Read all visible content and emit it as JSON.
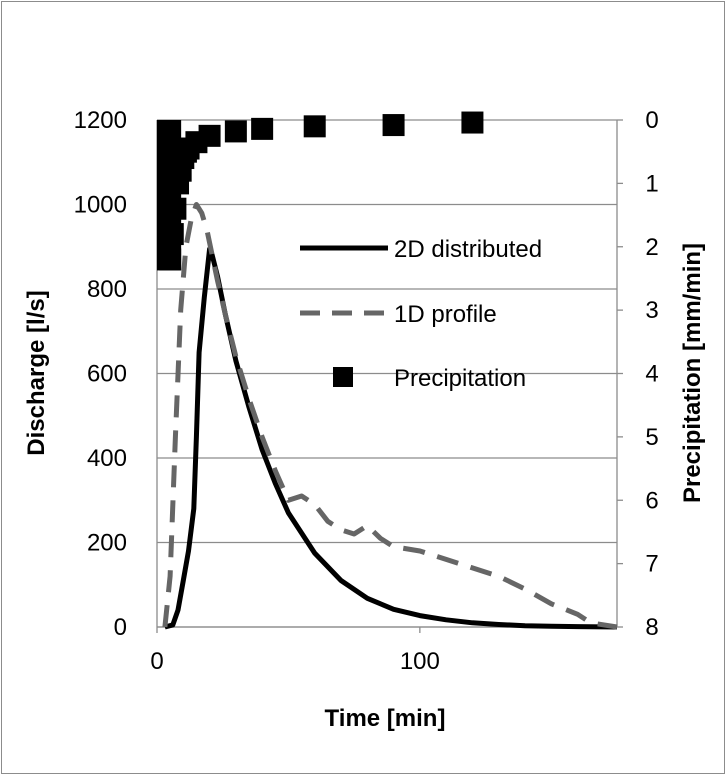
{
  "chart_data": {
    "type": "line",
    "title": "",
    "xlabel": "Time [min]",
    "ylabel": "Discharge [l/s]",
    "y2label": "Precipitation [mm/min]",
    "xlim": [
      0,
      175
    ],
    "ylim": [
      0,
      1200
    ],
    "y2lim": [
      8,
      0
    ],
    "x_ticks": [
      "0",
      "100"
    ],
    "y_ticks": [
      "0",
      "200",
      "400",
      "600",
      "800",
      "1000",
      "1200"
    ],
    "y2_ticks": [
      "0",
      "1",
      "2",
      "3",
      "4",
      "5",
      "6",
      "7",
      "8"
    ],
    "grid": "horizontal",
    "legend_position": "upper-right inside",
    "series": [
      {
        "name": "2D distributed",
        "axis": "left",
        "style": "solid",
        "color": "#000000",
        "x": [
          3,
          6,
          8,
          10,
          12,
          14,
          15,
          16,
          18,
          20,
          21,
          23,
          26,
          30,
          35,
          40,
          45,
          50,
          60,
          70,
          80,
          90,
          100,
          110,
          120,
          130,
          140,
          150,
          160,
          175
        ],
        "y": [
          0,
          5,
          40,
          110,
          180,
          280,
          450,
          650,
          780,
          895,
          880,
          830,
          740,
          630,
          520,
          420,
          340,
          270,
          175,
          110,
          68,
          42,
          27,
          17,
          10,
          6,
          3,
          2,
          1,
          0
        ]
      },
      {
        "name": "1D profile",
        "axis": "left",
        "style": "dashed",
        "color": "#666666",
        "x": [
          3,
          5,
          7,
          9,
          11,
          13,
          15,
          17,
          19,
          21,
          23,
          26,
          30,
          35,
          40,
          45,
          50,
          55,
          60,
          65,
          70,
          75,
          80,
          85,
          90,
          100,
          110,
          120,
          130,
          140,
          150,
          160,
          165,
          175
        ],
        "y": [
          0,
          120,
          450,
          750,
          900,
          965,
          1000,
          980,
          940,
          880,
          820,
          740,
          640,
          540,
          450,
          370,
          300,
          310,
          290,
          250,
          230,
          220,
          240,
          210,
          190,
          180,
          160,
          140,
          120,
          90,
          55,
          30,
          10,
          0
        ]
      },
      {
        "name": "Precipitation",
        "axis": "right",
        "style": "markers",
        "marker": "square",
        "color": "#000000",
        "x": [
          5,
          6,
          7,
          8,
          9,
          10,
          11,
          12,
          15,
          20,
          30,
          40,
          60,
          90,
          120
        ],
        "y": [
          2.2,
          1.8,
          1.4,
          1.0,
          0.8,
          0.6,
          0.5,
          0.45,
          0.35,
          0.25,
          0.18,
          0.14,
          0.1,
          0.08,
          0.04
        ]
      }
    ]
  },
  "legend": [
    {
      "label": "2D distributed",
      "style": "solid"
    },
    {
      "label": "1D profile",
      "style": "dashed"
    },
    {
      "label": "Precipitation",
      "style": "marker"
    }
  ]
}
